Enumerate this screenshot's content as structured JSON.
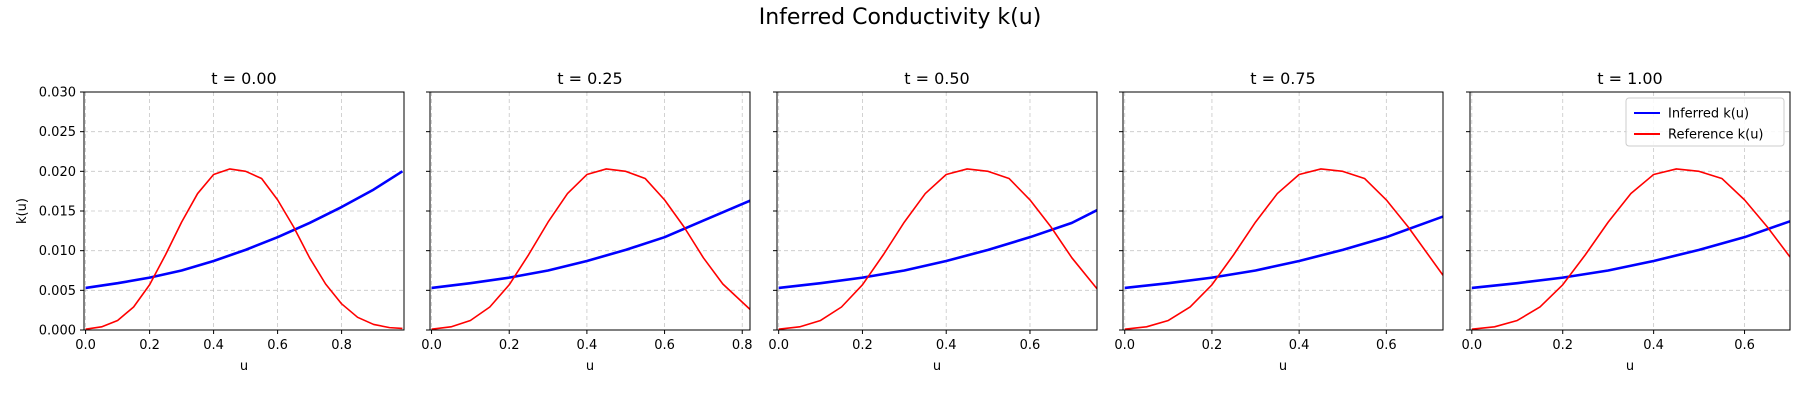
{
  "figure_title": "Inferred Conductivity k(u)",
  "colors": {
    "inferred": "#0000ff",
    "reference": "#ff0000",
    "grid": "#b0b0b0"
  },
  "chart_data": [
    {
      "type": "line",
      "title": "t = 0.00",
      "xlabel": "u",
      "ylabel": "k(u)",
      "xlim": [
        -0.005,
        0.995
      ],
      "ylim": [
        0,
        0.03
      ],
      "xticks": [
        0.0,
        0.2,
        0.4,
        0.6,
        0.8
      ],
      "xtick_labels": [
        "0.0",
        "0.2",
        "0.4",
        "0.6",
        "0.8"
      ],
      "yticks": [
        0,
        0.005,
        0.01,
        0.015,
        0.02,
        0.025,
        0.03
      ],
      "ytick_labels": [
        "0.000",
        "0.005",
        "0.010",
        "0.015",
        "0.020",
        "0.025",
        "0.030"
      ],
      "grid": true,
      "legend": null,
      "series": [
        {
          "name": "Inferred k(u)",
          "color": "#0000ff",
          "x": [
            0,
            0.1,
            0.2,
            0.3,
            0.4,
            0.5,
            0.6,
            0.7,
            0.8,
            0.9,
            0.99
          ],
          "y": [
            0.0053,
            0.0059,
            0.0066,
            0.0075,
            0.0087,
            0.0101,
            0.0117,
            0.0135,
            0.0155,
            0.0177,
            0.02
          ]
        },
        {
          "name": "Reference k(u)",
          "color": "#ff0000",
          "x": [
            0,
            0.05,
            0.1,
            0.15,
            0.2,
            0.25,
            0.3,
            0.35,
            0.4,
            0.45,
            0.5,
            0.55,
            0.6,
            0.65,
            0.7,
            0.75,
            0.8,
            0.85,
            0.9,
            0.95,
            0.99
          ],
          "y": [
            0.0001,
            0.0004,
            0.0012,
            0.0029,
            0.0057,
            0.0095,
            0.0136,
            0.0172,
            0.0196,
            0.0203,
            0.02,
            0.0191,
            0.0164,
            0.013,
            0.0091,
            0.0058,
            0.0033,
            0.0016,
            0.0007,
            0.0003,
            0.0002
          ]
        }
      ]
    },
    {
      "type": "line",
      "title": "t = 0.25",
      "xlabel": "u",
      "ylabel": "",
      "xlim": [
        -0.004,
        0.82
      ],
      "ylim": [
        0,
        0.03
      ],
      "xticks": [
        0.0,
        0.2,
        0.4,
        0.6,
        0.8
      ],
      "xtick_labels": [
        "0.0",
        "0.2",
        "0.4",
        "0.6",
        "0.8"
      ],
      "yticks": [
        0,
        0.005,
        0.01,
        0.015,
        0.02,
        0.025,
        0.03
      ],
      "ytick_labels": [],
      "grid": true,
      "legend": null,
      "series": [
        {
          "name": "Inferred k(u)",
          "color": "#0000ff",
          "x": [
            0,
            0.1,
            0.2,
            0.3,
            0.4,
            0.5,
            0.6,
            0.7,
            0.82
          ],
          "y": [
            0.0053,
            0.0059,
            0.0066,
            0.0075,
            0.0087,
            0.0101,
            0.0117,
            0.0138,
            0.0163
          ]
        },
        {
          "name": "Reference k(u)",
          "color": "#ff0000",
          "x": [
            0,
            0.05,
            0.1,
            0.15,
            0.2,
            0.25,
            0.3,
            0.35,
            0.4,
            0.45,
            0.5,
            0.55,
            0.6,
            0.65,
            0.7,
            0.75,
            0.82
          ],
          "y": [
            0.0001,
            0.0004,
            0.0012,
            0.0029,
            0.0057,
            0.0095,
            0.0136,
            0.0172,
            0.0196,
            0.0203,
            0.02,
            0.0191,
            0.0164,
            0.013,
            0.0091,
            0.0058,
            0.0026
          ]
        }
      ]
    },
    {
      "type": "line",
      "title": "t = 0.50",
      "xlabel": "u",
      "ylabel": "",
      "xlim": [
        -0.004,
        0.76
      ],
      "ylim": [
        0,
        0.03
      ],
      "xticks": [
        0.0,
        0.2,
        0.4,
        0.6
      ],
      "xtick_labels": [
        "0.0",
        "0.2",
        "0.4",
        "0.6"
      ],
      "yticks": [
        0,
        0.005,
        0.01,
        0.015,
        0.02,
        0.025,
        0.03
      ],
      "ytick_labels": [],
      "grid": true,
      "legend": null,
      "series": [
        {
          "name": "Inferred k(u)",
          "color": "#0000ff",
          "x": [
            0,
            0.1,
            0.2,
            0.3,
            0.4,
            0.5,
            0.6,
            0.7,
            0.76
          ],
          "y": [
            0.0053,
            0.0059,
            0.0066,
            0.0075,
            0.0087,
            0.0101,
            0.0117,
            0.0135,
            0.0151
          ]
        },
        {
          "name": "Reference k(u)",
          "color": "#ff0000",
          "x": [
            0,
            0.05,
            0.1,
            0.15,
            0.2,
            0.25,
            0.3,
            0.35,
            0.4,
            0.45,
            0.5,
            0.55,
            0.6,
            0.65,
            0.7,
            0.76
          ],
          "y": [
            0.0001,
            0.0004,
            0.0012,
            0.0029,
            0.0057,
            0.0095,
            0.0136,
            0.0172,
            0.0196,
            0.0203,
            0.02,
            0.0191,
            0.0164,
            0.013,
            0.0091,
            0.0052
          ]
        }
      ]
    },
    {
      "type": "line",
      "title": "t = 0.75",
      "xlabel": "u",
      "ylabel": "",
      "xlim": [
        -0.004,
        0.73
      ],
      "ylim": [
        0,
        0.03
      ],
      "xticks": [
        0.0,
        0.2,
        0.4,
        0.6
      ],
      "xtick_labels": [
        "0.0",
        "0.2",
        "0.4",
        "0.6"
      ],
      "yticks": [
        0,
        0.005,
        0.01,
        0.015,
        0.02,
        0.025,
        0.03
      ],
      "ytick_labels": [],
      "grid": true,
      "legend": null,
      "series": [
        {
          "name": "Inferred k(u)",
          "color": "#0000ff",
          "x": [
            0,
            0.1,
            0.2,
            0.3,
            0.4,
            0.5,
            0.6,
            0.73
          ],
          "y": [
            0.0053,
            0.0059,
            0.0066,
            0.0075,
            0.0087,
            0.0101,
            0.0117,
            0.0143
          ]
        },
        {
          "name": "Reference k(u)",
          "color": "#ff0000",
          "x": [
            0,
            0.05,
            0.1,
            0.15,
            0.2,
            0.25,
            0.3,
            0.35,
            0.4,
            0.45,
            0.5,
            0.55,
            0.6,
            0.65,
            0.73
          ],
          "y": [
            0.0001,
            0.0004,
            0.0012,
            0.0029,
            0.0057,
            0.0095,
            0.0136,
            0.0172,
            0.0196,
            0.0203,
            0.02,
            0.0191,
            0.0164,
            0.013,
            0.0069
          ]
        }
      ]
    },
    {
      "type": "line",
      "title": "t = 1.00",
      "xlabel": "u",
      "ylabel": "",
      "xlim": [
        -0.004,
        0.7
      ],
      "ylim": [
        0,
        0.03
      ],
      "xticks": [
        0.0,
        0.2,
        0.4,
        0.6
      ],
      "xtick_labels": [
        "0.0",
        "0.2",
        "0.4",
        "0.6"
      ],
      "yticks": [
        0,
        0.005,
        0.01,
        0.015,
        0.02,
        0.025,
        0.03
      ],
      "ytick_labels": [],
      "grid": true,
      "legend": "top-right",
      "series": [
        {
          "name": "Inferred k(u)",
          "color": "#0000ff",
          "x": [
            0,
            0.1,
            0.2,
            0.3,
            0.4,
            0.5,
            0.6,
            0.7
          ],
          "y": [
            0.0053,
            0.0059,
            0.0066,
            0.0075,
            0.0087,
            0.0101,
            0.0117,
            0.0137
          ]
        },
        {
          "name": "Reference k(u)",
          "color": "#ff0000",
          "x": [
            0,
            0.05,
            0.1,
            0.15,
            0.2,
            0.25,
            0.3,
            0.35,
            0.4,
            0.45,
            0.5,
            0.55,
            0.6,
            0.65,
            0.7
          ],
          "y": [
            0.0001,
            0.0004,
            0.0012,
            0.0029,
            0.0057,
            0.0095,
            0.0136,
            0.0172,
            0.0196,
            0.0203,
            0.02,
            0.0191,
            0.0164,
            0.013,
            0.0092
          ]
        }
      ]
    }
  ]
}
